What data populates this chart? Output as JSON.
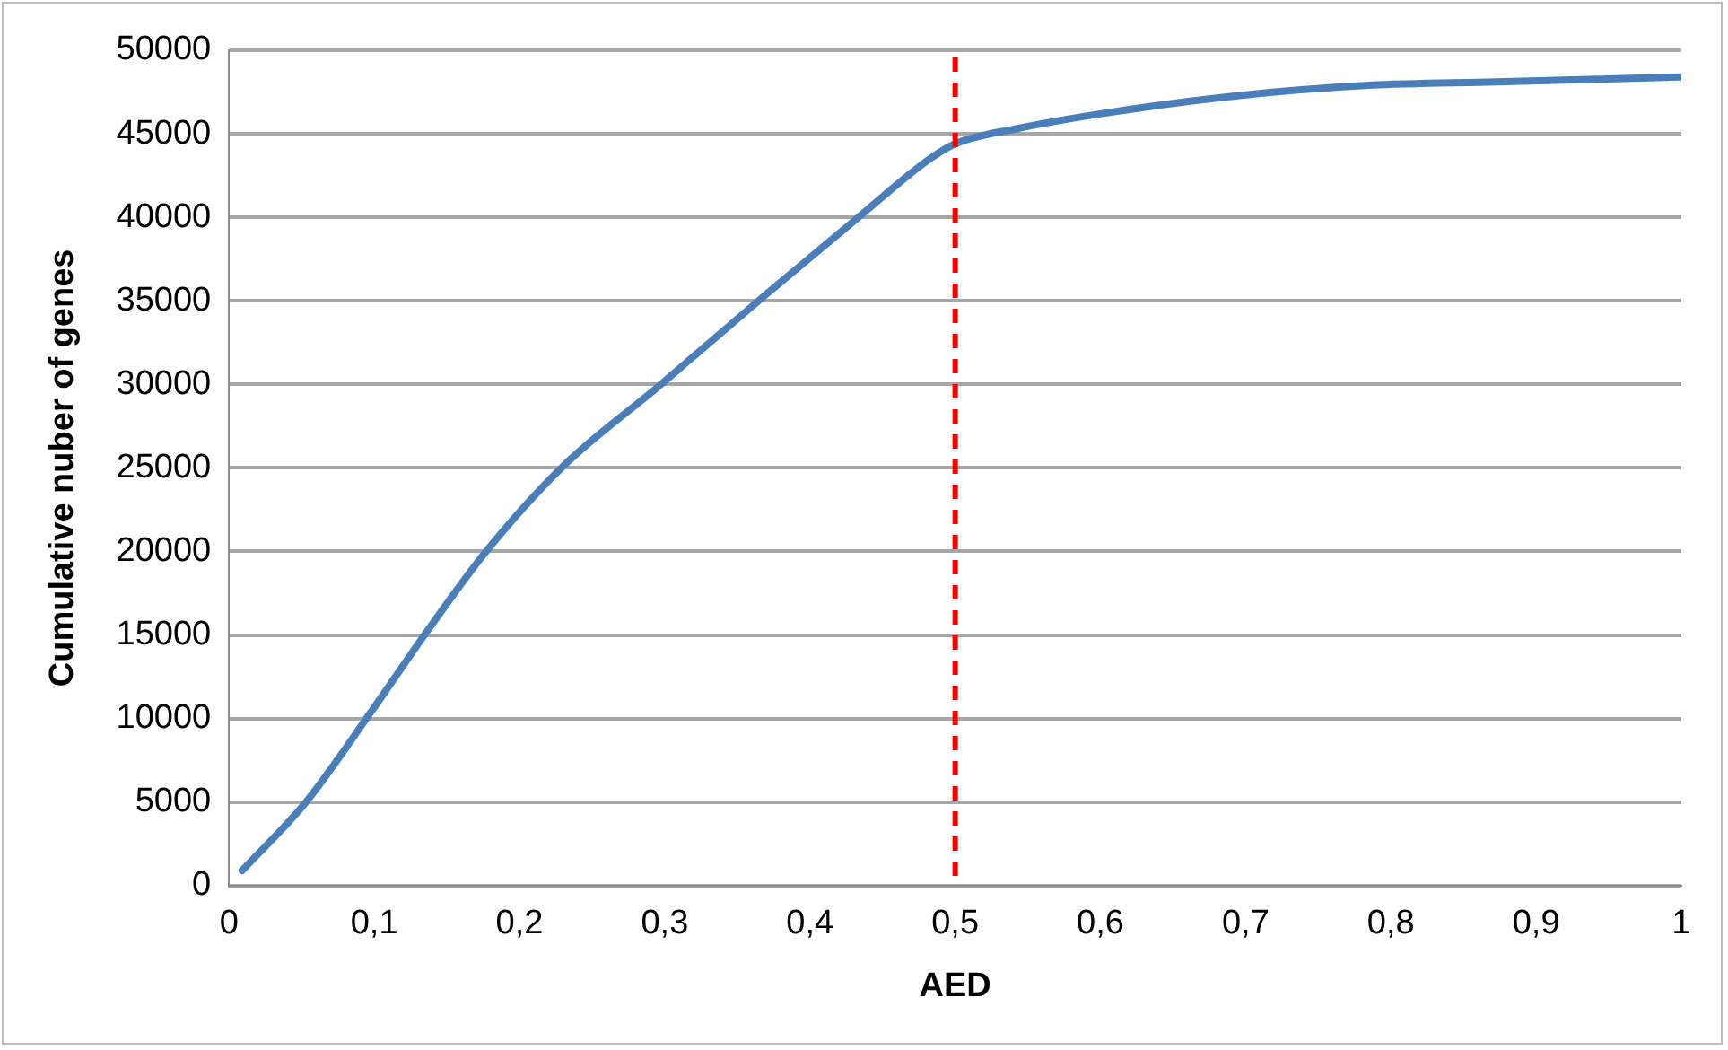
{
  "chart_data": {
    "type": "line",
    "xlabel": "AED",
    "ylabel": "Cumulative nuber of genes",
    "x": [
      0.009,
      0.053,
      0.097,
      0.137,
      0.177,
      0.23,
      0.296,
      0.37,
      0.432,
      0.481,
      0.5,
      0.542,
      0.608,
      0.697,
      0.785,
      0.873,
      1.0
    ],
    "series": [
      {
        "color": "#4a7ebb",
        "values": [
          900,
          5000,
          10300,
          15300,
          20000,
          25100,
          29900,
          35400,
          39900,
          43400,
          44400,
          45300,
          46300,
          47300,
          47900,
          48100,
          48400
        ]
      }
    ],
    "xlim": [
      0,
      1
    ],
    "xticks": [
      0,
      {
        "value": 0.1,
        "label": "0,1"
      },
      {
        "value": 0.2,
        "label": "0,2"
      },
      {
        "value": 0.3,
        "label": "0,3"
      },
      {
        "value": 0.4,
        "label": "0,4"
      },
      {
        "value": 0.5,
        "label": "0,5"
      },
      {
        "value": 0.6,
        "label": "0,6"
      },
      {
        "value": 0.7,
        "label": "0,7"
      },
      {
        "value": 0.8,
        "label": "0,8"
      },
      {
        "value": 0.9,
        "label": "0,9"
      },
      1
    ],
    "ylim": [
      0,
      50000
    ],
    "yticks": [
      0,
      5000,
      10000,
      15000,
      20000,
      25000,
      30000,
      35000,
      40000,
      45000,
      50000
    ],
    "grid": "y",
    "legend": false,
    "marker": "none",
    "line_style": "solid",
    "ref_lines": [
      {
        "axis": "x",
        "value": 0.5,
        "color": "#ff0000",
        "line_style": "dashed"
      }
    ]
  }
}
